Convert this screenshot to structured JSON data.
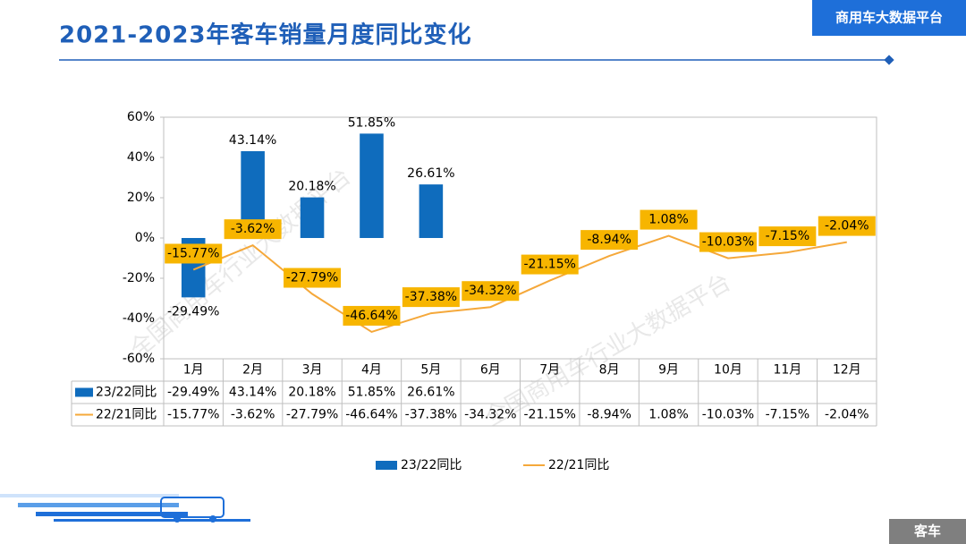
{
  "brand": "商用车大数据平台",
  "footer_tag": "客车",
  "watermark": "全国商用车行业大数据平台",
  "chart_data": {
    "type": "bar-line",
    "title": "2021-2023年客车销量月度同比变化",
    "categories": [
      "1月",
      "2月",
      "3月",
      "4月",
      "5月",
      "6月",
      "7月",
      "8月",
      "9月",
      "10月",
      "11月",
      "12月"
    ],
    "series": [
      {
        "name": "23/22同比",
        "type": "bar",
        "color": "#0f6cbd",
        "values": [
          -29.49,
          43.14,
          20.18,
          51.85,
          26.61,
          null,
          null,
          null,
          null,
          null,
          null,
          null
        ],
        "value_labels": [
          "-29.49%",
          "43.14%",
          "20.18%",
          "51.85%",
          "26.61%",
          null,
          null,
          null,
          null,
          null,
          null,
          null
        ]
      },
      {
        "name": "22/21同比",
        "type": "line",
        "color": "#f5a83a",
        "label_color": "#f7b500",
        "values": [
          -15.77,
          -3.62,
          -27.79,
          -46.64,
          -37.38,
          -34.32,
          -21.15,
          -8.94,
          1.08,
          -10.03,
          -7.15,
          -2.04
        ],
        "value_labels": [
          "-15.77%",
          "-3.62%",
          "-27.79%",
          "-46.64%",
          "-37.38%",
          "-34.32%",
          "-21.15%",
          "-8.94%",
          "1.08%",
          "-10.03%",
          "-7.15%",
          "-2.04%"
        ]
      }
    ],
    "ylim": [
      -60,
      60
    ],
    "yticks": [
      {
        "value": -60,
        "label": "-60%"
      },
      {
        "value": -40,
        "label": "-40%"
      },
      {
        "value": -20,
        "label": "-20%"
      },
      {
        "value": 0,
        "label": "0%"
      },
      {
        "value": 20,
        "label": "20%"
      },
      {
        "value": 40,
        "label": "40%"
      },
      {
        "value": 60,
        "label": "60%"
      }
    ],
    "grid": false,
    "data_table": true,
    "legend": "bottom"
  }
}
